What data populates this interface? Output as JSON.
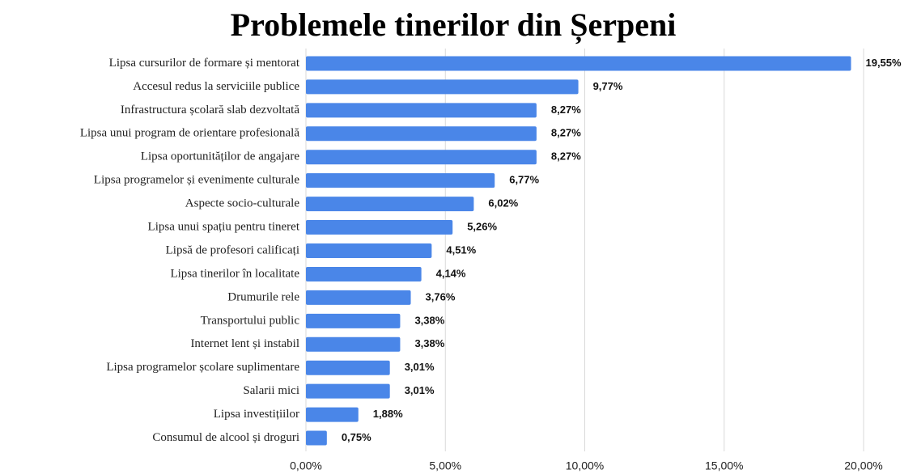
{
  "chart_data": {
    "type": "bar",
    "orientation": "horizontal",
    "title": "Problemele tinerilor din Șerpeni",
    "categories": [
      "Lipsa cursurilor de formare și mentorat",
      "Accesul redus la serviciile publice",
      "Infrastructura școlară slab dezvoltată",
      "Lipsa unui program de orientare profesională",
      "Lipsa oportunităților de angajare",
      "Lipsa programelor și evenimente culturale",
      "Aspecte socio-culturale",
      "Lipsa unui spațiu pentru tineret",
      "Lipsă de profesori calificați",
      "Lipsa tinerilor în localitate",
      "Drumurile rele",
      "Transportului public",
      "Internet lent și instabil",
      "Lipsa programelor școlare suplimentare",
      "Salarii mici",
      "Lipsa investițiilor",
      "Consumul de alcool și droguri"
    ],
    "values": [
      19.55,
      9.77,
      8.27,
      8.27,
      8.27,
      6.77,
      6.02,
      5.26,
      4.51,
      4.14,
      3.76,
      3.38,
      3.38,
      3.01,
      3.01,
      1.88,
      0.75
    ],
    "value_labels": [
      "19,55%",
      "9,77%",
      "8,27%",
      "8,27%",
      "8,27%",
      "6,77%",
      "6,02%",
      "5,26%",
      "4,51%",
      "4,14%",
      "3,76%",
      "3,38%",
      "3,38%",
      "3,01%",
      "3,01%",
      "1,88%",
      "0,75%"
    ],
    "color": "#4a86e8",
    "xlim": [
      0,
      20
    ],
    "xticks": [
      {
        "value": 0,
        "label": "0,00%"
      },
      {
        "value": 5,
        "label": "5,00%"
      },
      {
        "value": 10,
        "label": "10,00%"
      },
      {
        "value": 15,
        "label": "15,00%"
      },
      {
        "value": 20,
        "label": "20,00%"
      }
    ],
    "grid": true
  }
}
